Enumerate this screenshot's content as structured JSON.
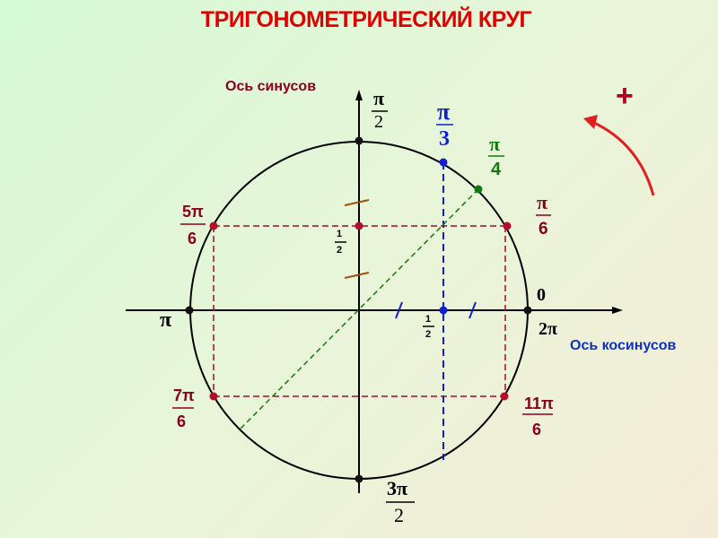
{
  "title": "ТРИГОНОМЕТРИЧЕСКИЙ КРУГ",
  "sine_axis_label": "Ось синусов",
  "cosine_axis_label": "Ось косинусов",
  "plus_sign": "+",
  "colors": {
    "title": "#e00000",
    "sine_label": "#8b0020",
    "cosine_label": "#1030c0",
    "red_points": "#b0102a",
    "blue": "#1020d0",
    "green": "#107a10",
    "arrow": "#e02020"
  },
  "angles": {
    "pi_2": {
      "num": "π",
      "den": "2"
    },
    "pi_3": {
      "num": "π",
      "den": "3"
    },
    "pi_4": {
      "num": "π",
      "den": "4"
    },
    "pi_6": {
      "num": "π",
      "den": "6"
    },
    "five_pi_6": {
      "num": "5π",
      "den": "6"
    },
    "seven_pi_6": {
      "num": "7π",
      "den": "6"
    },
    "eleven_pi_6": {
      "num": "11π",
      "den": "6"
    },
    "three_pi_2": {
      "num": "3π",
      "den": "2"
    },
    "pi": "π",
    "zero": "0",
    "two_pi": "2π"
  },
  "half": {
    "num": "1",
    "den": "2"
  }
}
